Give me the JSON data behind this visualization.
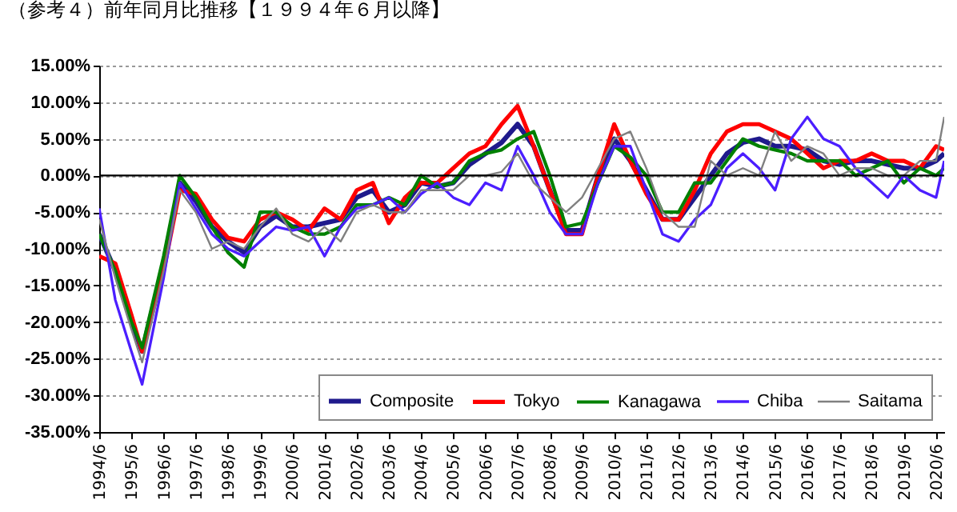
{
  "chart_data": {
    "type": "line",
    "title": "（参考４）前年同月比推移【１９９４年６月以降】",
    "x": [
      "1994-06",
      "1994-12",
      "1995-06",
      "1995-10",
      "1996-06",
      "1996-12",
      "1997-06",
      "1997-12",
      "1998-06",
      "1998-12",
      "1999-06",
      "1999-12",
      "2000-06",
      "2000-12",
      "2001-06",
      "2001-12",
      "2002-06",
      "2002-12",
      "2003-06",
      "2003-12",
      "2004-06",
      "2004-12",
      "2005-06",
      "2005-12",
      "2006-06",
      "2006-12",
      "2007-06",
      "2007-12",
      "2008-06",
      "2008-12",
      "2009-06",
      "2009-12",
      "2010-06",
      "2010-12",
      "2011-06",
      "2011-12",
      "2012-06",
      "2012-12",
      "2013-06",
      "2013-12",
      "2014-06",
      "2014-12",
      "2015-06",
      "2015-12",
      "2016-06",
      "2016-12",
      "2017-06",
      "2017-12",
      "2018-06",
      "2018-12",
      "2019-06",
      "2019-12",
      "2020-06",
      "2020-09"
    ],
    "series": [
      {
        "name": "Composite",
        "color": "#1f1a8c",
        "values": [
          -8,
          -13,
          -20,
          -24,
          -12,
          -1,
          -3.5,
          -7,
          -9,
          -10.5,
          -7,
          -5.5,
          -7,
          -7,
          -6.5,
          -6,
          -3,
          -2,
          -5,
          -4,
          -1,
          -1.5,
          -1,
          1.5,
          3,
          4.5,
          7,
          4,
          -2,
          -7.5,
          -7.5,
          0,
          5,
          2,
          -2,
          -6,
          -6,
          -3,
          0,
          3,
          4.5,
          5,
          4,
          4,
          3.5,
          2,
          1.5,
          2,
          2,
          1.5,
          1,
          1,
          2,
          3
        ]
      },
      {
        "name": "Tokyo",
        "color": "#ff0000",
        "values": [
          -11,
          -12,
          -19,
          -24,
          -13,
          -2,
          -2.5,
          -6,
          -8.5,
          -9,
          -6,
          -5,
          -6,
          -7.5,
          -4.5,
          -6,
          -2,
          -1,
          -6.5,
          -3,
          -1,
          -1,
          1,
          3,
          4,
          7,
          9.5,
          4,
          -2,
          -8,
          -8,
          0,
          7,
          2,
          -2.5,
          -6,
          -6,
          -2,
          3,
          6,
          7,
          7,
          6,
          5,
          3,
          1,
          2,
          2,
          3,
          2,
          2,
          1,
          4,
          3.5
        ]
      },
      {
        "name": "Kanagawa",
        "color": "#008000",
        "values": [
          -8,
          -13,
          -20,
          -23.5,
          -11,
          0,
          -3,
          -7,
          -10.5,
          -12.5,
          -5,
          -5,
          -7,
          -8,
          -8,
          -7,
          -4,
          -4,
          -3,
          -4,
          0,
          -1.5,
          -1,
          2,
          3,
          3.5,
          5,
          6,
          0,
          -7,
          -6.5,
          -1,
          4,
          2.5,
          0,
          -5,
          -5,
          -1,
          -1,
          2,
          5,
          4,
          3.5,
          3,
          2,
          2,
          2,
          0,
          1,
          2,
          -1,
          1,
          0,
          1
        ]
      },
      {
        "name": "Chiba",
        "color": "#4b1eff",
        "values": [
          -4.5,
          -17,
          -24,
          -28.5,
          -14,
          -1,
          -4.5,
          -8,
          -10,
          -11,
          -9,
          -7,
          -7.5,
          -7,
          -11,
          -7,
          -4.5,
          -4,
          -3,
          -5,
          -2.5,
          -1,
          -3,
          -4,
          -1,
          -2,
          4,
          0,
          -5,
          -8,
          -8,
          -1,
          4,
          4,
          -2,
          -8,
          -9,
          -6,
          -4,
          1,
          3,
          1,
          -2,
          5,
          8,
          5,
          4,
          1,
          -1,
          -3,
          0,
          -2,
          -3,
          2
        ]
      },
      {
        "name": "Saitama",
        "color": "#808080",
        "values": [
          -6,
          -14,
          -21,
          -25.5,
          -13,
          -2,
          -5,
          -10,
          -9,
          -10,
          -7,
          -4.5,
          -8,
          -9,
          -7,
          -9,
          -5,
          -4,
          -5,
          -5,
          -2,
          -2,
          -2,
          0,
          0,
          0.5,
          3,
          -1,
          -3,
          -5,
          -3,
          1,
          5,
          6,
          1,
          -5,
          -7,
          -7,
          2,
          0,
          1,
          0,
          6,
          2,
          4,
          3,
          0,
          1,
          1,
          0,
          0,
          2,
          2,
          8
        ]
      }
    ],
    "xlim": [
      "1994-06",
      "2020-09"
    ],
    "xticks": [
      {
        "value": "1994-06",
        "label": "1994/6"
      },
      {
        "value": "1995-06",
        "label": "1995/6"
      },
      {
        "value": "1996-06",
        "label": "1996/6"
      },
      {
        "value": "1997-06",
        "label": "1997/6"
      },
      {
        "value": "1998-06",
        "label": "1998/6"
      },
      {
        "value": "1999-06",
        "label": "1999/6"
      },
      {
        "value": "2000-06",
        "label": "2000/6"
      },
      {
        "value": "2001-06",
        "label": "2001/6"
      },
      {
        "value": "2002-06",
        "label": "2002/6"
      },
      {
        "value": "2003-06",
        "label": "2003/6"
      },
      {
        "value": "2004-06",
        "label": "2004/6"
      },
      {
        "value": "2005-06",
        "label": "2005/6"
      },
      {
        "value": "2006-06",
        "label": "2006/6"
      },
      {
        "value": "2007-06",
        "label": "2007/6"
      },
      {
        "value": "2008-06",
        "label": "2008/6"
      },
      {
        "value": "2009-06",
        "label": "2009/6"
      },
      {
        "value": "2010-06",
        "label": "2010/6"
      },
      {
        "value": "2011-06",
        "label": "2011/6"
      },
      {
        "value": "2012-06",
        "label": "2012/6"
      },
      {
        "value": "2013-06",
        "label": "2013/6"
      },
      {
        "value": "2014-06",
        "label": "2014/6"
      },
      {
        "value": "2015-06",
        "label": "2015/6"
      },
      {
        "value": "2016-06",
        "label": "2016/6"
      },
      {
        "value": "2017-06",
        "label": "2017/6"
      },
      {
        "value": "2018-06",
        "label": "2018/6"
      },
      {
        "value": "2019-06",
        "label": "2019/6"
      },
      {
        "value": "2020-06",
        "label": "2020/6"
      }
    ],
    "ylim": [
      -35,
      15
    ],
    "yticks": [
      {
        "value": -35,
        "label": "-35.00%"
      },
      {
        "value": -30,
        "label": "-30.00%"
      },
      {
        "value": -25,
        "label": "-25.00%"
      },
      {
        "value": -20,
        "label": "-20.00%"
      },
      {
        "value": -15,
        "label": "-15.00%"
      },
      {
        "value": -10,
        "label": "-10.00%"
      },
      {
        "value": -5,
        "label": "-5.00%"
      },
      {
        "value": 0,
        "label": "0.00%"
      },
      {
        "value": 5,
        "label": "5.00%"
      },
      {
        "value": 10,
        "label": "10.00%"
      },
      {
        "value": 15,
        "label": "15.00%"
      }
    ],
    "ref_lines": [
      {
        "axis": "y",
        "value": 0,
        "color": "#000000"
      }
    ],
    "grid": "y",
    "legend": "bottom right"
  }
}
